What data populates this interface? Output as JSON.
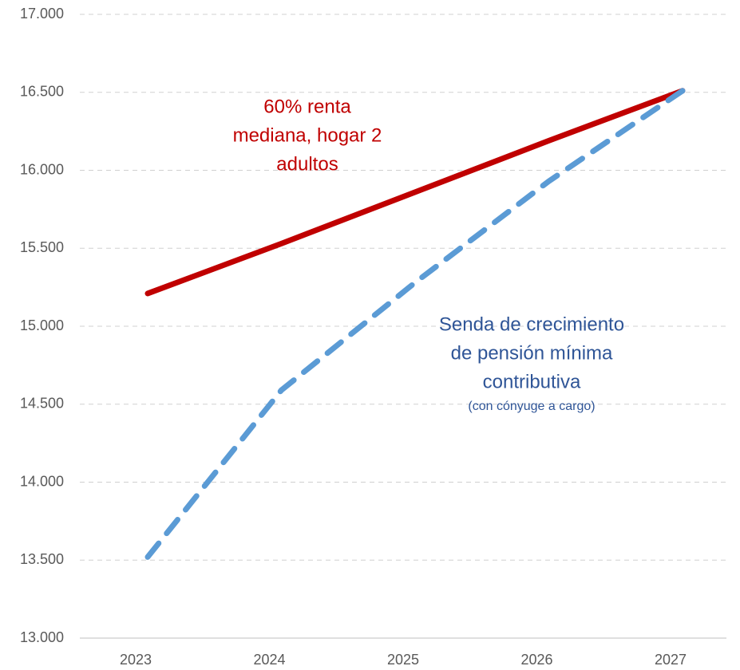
{
  "chart_data": {
    "type": "line",
    "categories": [
      "2023",
      "2024",
      "2025",
      "2026",
      "2027"
    ],
    "series": [
      {
        "color": "#c00000",
        "style": "solid",
        "values": [
          15210,
          15530,
          15860,
          16190,
          16510
        ]
      },
      {
        "color": "#5b9bd5",
        "style": "dashed",
        "values": [
          13520,
          14590,
          15280,
          15930,
          16510
        ]
      }
    ],
    "ylim": [
      13000,
      17000
    ],
    "yticks": [
      {
        "value": 13000,
        "label": "13.000"
      },
      {
        "value": 13500,
        "label": "13.500"
      },
      {
        "value": 14000,
        "label": "14.000"
      },
      {
        "value": 14500,
        "label": "14.500"
      },
      {
        "value": 15000,
        "label": "15.000"
      },
      {
        "value": 15500,
        "label": "15.500"
      },
      {
        "value": 16000,
        "label": "16.000"
      },
      {
        "value": 16500,
        "label": "16.500"
      },
      {
        "value": 17000,
        "label": "17.000"
      }
    ],
    "grid": true,
    "annotations": [
      {
        "color": "#c00000",
        "lines": [
          "60% renta",
          "mediana, hogar 2",
          "adultos"
        ]
      },
      {
        "color": "#2f5597",
        "lines": [
          "Senda de crecimiento",
          "de pensión mínima",
          "contributiva"
        ],
        "note": "(con cónyuge a cargo)"
      }
    ]
  }
}
